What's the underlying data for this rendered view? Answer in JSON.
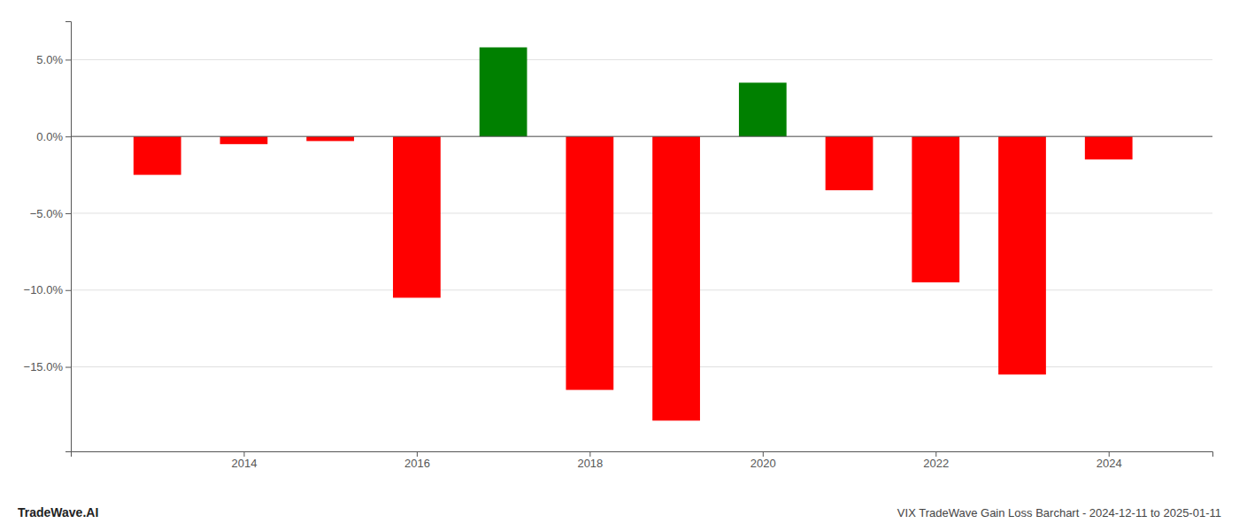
{
  "chart_data": {
    "type": "bar",
    "title": "VIX TradeWave Gain Loss Barchart - 2024-12-11 to 2025-01-11",
    "annotations": [
      "TradeWave.AI"
    ],
    "x": [
      2013,
      2014,
      2015,
      2016,
      2017,
      2018,
      2019,
      2020,
      2021,
      2022,
      2023,
      2024
    ],
    "values": [
      -2.5,
      -0.5,
      -0.3,
      -10.5,
      5.8,
      -16.5,
      -18.5,
      3.5,
      -3.5,
      -9.5,
      -15.5,
      -1.5
    ],
    "colors": [
      "red",
      "red",
      "red",
      "red",
      "green",
      "red",
      "red",
      "green",
      "red",
      "red",
      "red",
      "red"
    ],
    "xlim": [
      2012.0,
      2025.2
    ],
    "xticks": [
      2014,
      2016,
      2018,
      2020,
      2022,
      2024
    ],
    "ylim": [
      -20.5,
      7.5
    ],
    "yticks": [
      {
        "value": 5.0,
        "label": "5.0%"
      },
      {
        "value": 0.0,
        "label": "0.0%"
      },
      {
        "value": -5.0,
        "label": "−5.0%"
      },
      {
        "value": -10.0,
        "label": "−10.0%"
      },
      {
        "value": -15.0,
        "label": "−15.0%"
      }
    ],
    "grid": true
  }
}
